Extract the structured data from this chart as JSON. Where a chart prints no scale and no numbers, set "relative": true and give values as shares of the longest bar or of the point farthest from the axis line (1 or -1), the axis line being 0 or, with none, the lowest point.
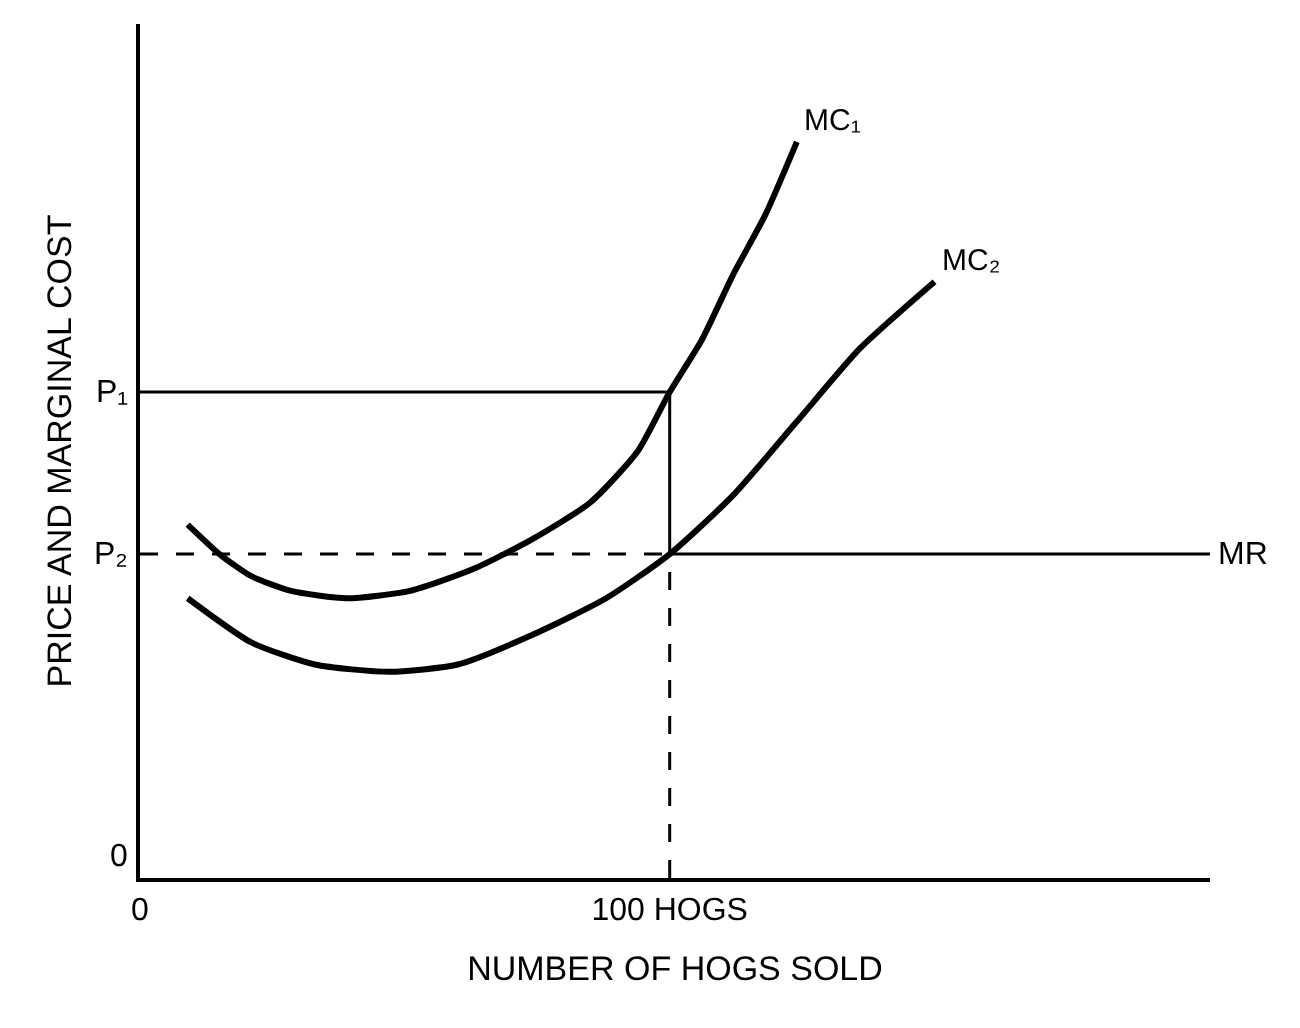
{
  "chart_data": {
    "type": "line",
    "relative": true,
    "xlabel": "NUMBER OF HOGS SOLD",
    "ylabel": "PRICE AND MARGINAL COST",
    "xlim": [
      0,
      202
    ],
    "xticks": [
      0,
      {
        "value": 100,
        "label": "100 HOGS"
      }
    ],
    "series": [
      {
        "name": "MC₁",
        "color": "#000000",
        "x": [
          9,
          15,
          21,
          28.5,
          39,
          51,
          63,
          74,
          85,
          94,
          100,
          106,
          112,
          118,
          124
        ],
        "values": [
          0.48,
          0.44,
          0.41,
          0.39,
          0.38,
          0.39,
          0.42,
          0.46,
          0.51,
          0.58,
          0.66,
          0.73,
          0.82,
          0.9,
          1.0
        ]
      },
      {
        "name": "MC₂",
        "color": "#000000",
        "x": [
          9,
          21,
          33,
          47,
          60,
          74,
          88,
          100,
          112,
          124,
          136,
          150
        ],
        "values": [
          0.38,
          0.32,
          0.29,
          0.28,
          0.29,
          0.33,
          0.38,
          0.44,
          0.52,
          0.62,
          0.72,
          0.81
        ]
      }
    ],
    "ref_lines": [
      {
        "axis": "x",
        "value": 100,
        "line_style": "dashed",
        "color": "#000000"
      },
      {
        "axis": "x",
        "value": 100,
        "line_style": "solid",
        "color": "#000000"
      },
      {
        "axis": "y",
        "value": 0.66,
        "label": "P₁",
        "line_style": "solid",
        "color": "#000000"
      },
      {
        "axis": "y",
        "value": 0.44,
        "label": "P₂",
        "line_style": "dashed",
        "color": "#000000"
      },
      {
        "axis": "y",
        "value": 0.44,
        "label": "MR",
        "line_style": "solid",
        "color": "#000000"
      }
    ],
    "annotations": [
      "0"
    ],
    "legend": false,
    "marker": "none",
    "line_style": "solid"
  }
}
